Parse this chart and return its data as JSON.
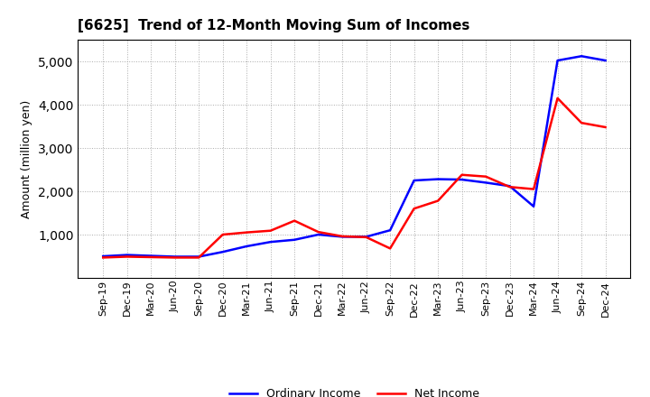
{
  "title": "[6625]  Trend of 12-Month Moving Sum of Incomes",
  "ylabel": "Amount (million yen)",
  "x_labels": [
    "Sep-19",
    "Dec-19",
    "Mar-20",
    "Jun-20",
    "Sep-20",
    "Dec-20",
    "Mar-21",
    "Jun-21",
    "Sep-21",
    "Dec-21",
    "Mar-22",
    "Jun-22",
    "Sep-22",
    "Dec-22",
    "Mar-23",
    "Jun-23",
    "Sep-23",
    "Dec-23",
    "Mar-24",
    "Jun-24",
    "Sep-24",
    "Dec-24"
  ],
  "ordinary_income": [
    500,
    530,
    510,
    490,
    490,
    600,
    730,
    830,
    880,
    1000,
    950,
    950,
    1100,
    2250,
    2280,
    2270,
    2200,
    2120,
    1650,
    5020,
    5120,
    5020
  ],
  "net_income": [
    470,
    490,
    480,
    470,
    470,
    1000,
    1050,
    1090,
    1320,
    1060,
    960,
    940,
    680,
    1600,
    1780,
    2380,
    2340,
    2100,
    2050,
    4150,
    3580,
    3480
  ],
  "ordinary_color": "#0000FF",
  "net_color": "#FF0000",
  "ylim_min": 0,
  "ylim_max": 5500,
  "yticks": [
    1000,
    2000,
    3000,
    4000,
    5000
  ],
  "background_color": "#FFFFFF",
  "grid_color": "#AAAAAA",
  "title_fontsize": 11,
  "axis_label_fontsize": 9,
  "tick_fontsize": 8,
  "legend_fontsize": 9,
  "line_width": 1.8
}
